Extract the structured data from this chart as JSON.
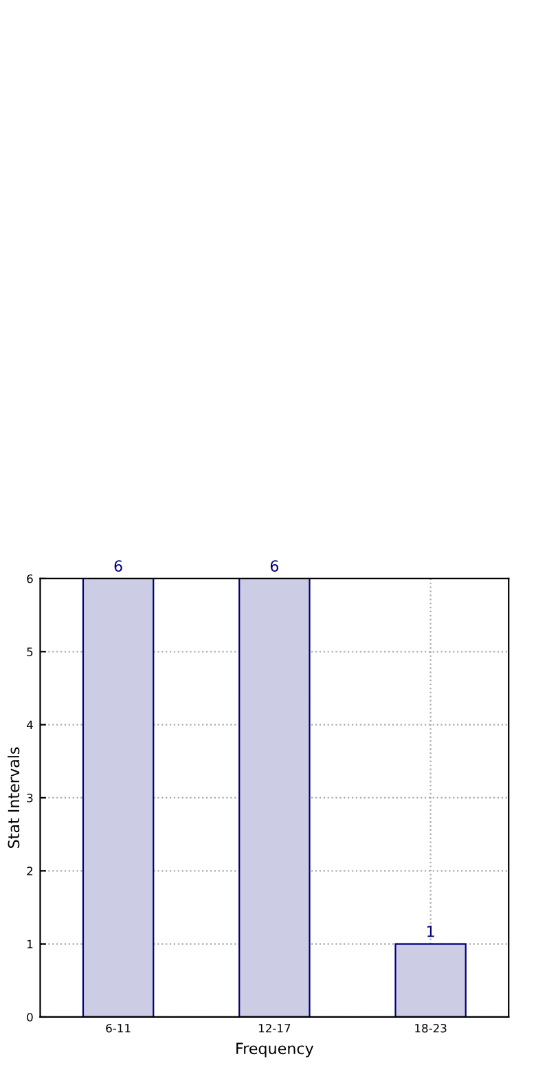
{
  "chart_data": {
    "type": "bar",
    "categories": [
      "6-11",
      "12-17",
      "18-23"
    ],
    "values": [
      6,
      6,
      1
    ],
    "color": "#cccce5",
    "xlabel": "Frequency",
    "ylabel": "Stat Intervals",
    "ylim": [
      0,
      6
    ],
    "yticks": [
      0,
      1,
      2,
      3,
      4,
      5,
      6
    ],
    "grid": true,
    "line_style": "dotted",
    "data_labels": true
  }
}
